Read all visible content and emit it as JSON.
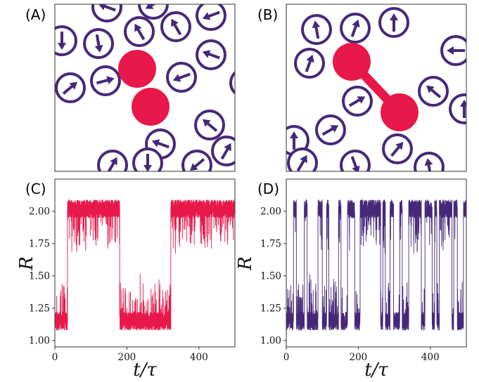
{
  "panels": [
    {
      "letter": "(A)"
    },
    {
      "letter": "(B)"
    },
    {
      "letter": "(C)"
    },
    {
      "letter": "(D)"
    }
  ],
  "colors": {
    "dimer": "#e8184a",
    "particle": "#46287a"
  },
  "chart_data": [
    {
      "type": "line",
      "panel": "(C)",
      "xlabel": "t/τ",
      "ylabel": "R",
      "xlim": [
        0,
        500
      ],
      "ylim": [
        0.95,
        2.25
      ],
      "xticks": [
        0,
        200,
        400
      ],
      "yticks": [
        "1.00",
        "1.25",
        "1.50",
        "1.75",
        "2.00"
      ],
      "color": "#e8184a",
      "segments": [
        {
          "t_start": 0,
          "t_end": 35,
          "mean_R": 1.15
        },
        {
          "t_start": 35,
          "t_end": 180,
          "mean_R": 2.02
        },
        {
          "t_start": 180,
          "t_end": 322,
          "mean_R": 1.15
        },
        {
          "t_start": 322,
          "t_end": 500,
          "mean_R": 2.02
        }
      ]
    },
    {
      "type": "line",
      "panel": "(D)",
      "xlabel": "t/τ",
      "ylabel": "R",
      "xlim": [
        0,
        500
      ],
      "ylim": [
        0.95,
        2.25
      ],
      "xticks": [
        0,
        200,
        400
      ],
      "yticks": [
        "1.00",
        "1.25",
        "1.50",
        "1.75",
        "2.00"
      ],
      "color": "#46287a",
      "segments": [
        {
          "t_start": 0,
          "t_end": 20,
          "mean_R": 1.15
        },
        {
          "t_start": 20,
          "t_end": 28,
          "mean_R": 2.02
        },
        {
          "t_start": 28,
          "t_end": 50,
          "mean_R": 1.15
        },
        {
          "t_start": 50,
          "t_end": 58,
          "mean_R": 2.02
        },
        {
          "t_start": 58,
          "t_end": 88,
          "mean_R": 1.15
        },
        {
          "t_start": 88,
          "t_end": 100,
          "mean_R": 2.02
        },
        {
          "t_start": 100,
          "t_end": 112,
          "mean_R": 1.15
        },
        {
          "t_start": 112,
          "t_end": 118,
          "mean_R": 2.02
        },
        {
          "t_start": 118,
          "t_end": 145,
          "mean_R": 1.15
        },
        {
          "t_start": 145,
          "t_end": 152,
          "mean_R": 2.02
        },
        {
          "t_start": 152,
          "t_end": 170,
          "mean_R": 1.15
        },
        {
          "t_start": 170,
          "t_end": 190,
          "mean_R": 2.02
        },
        {
          "t_start": 190,
          "t_end": 205,
          "mean_R": 1.15
        },
        {
          "t_start": 205,
          "t_end": 262,
          "mean_R": 2.02
        },
        {
          "t_start": 262,
          "t_end": 268,
          "mean_R": 1.15
        },
        {
          "t_start": 268,
          "t_end": 275,
          "mean_R": 2.02
        },
        {
          "t_start": 275,
          "t_end": 288,
          "mean_R": 1.15
        },
        {
          "t_start": 288,
          "t_end": 298,
          "mean_R": 2.02
        },
        {
          "t_start": 298,
          "t_end": 315,
          "mean_R": 1.15
        },
        {
          "t_start": 315,
          "t_end": 322,
          "mean_R": 2.02
        },
        {
          "t_start": 322,
          "t_end": 340,
          "mean_R": 1.15
        },
        {
          "t_start": 340,
          "t_end": 375,
          "mean_R": 2.02
        },
        {
          "t_start": 375,
          "t_end": 385,
          "mean_R": 1.15
        },
        {
          "t_start": 385,
          "t_end": 405,
          "mean_R": 2.02
        },
        {
          "t_start": 405,
          "t_end": 412,
          "mean_R": 1.15
        },
        {
          "t_start": 412,
          "t_end": 418,
          "mean_R": 2.02
        },
        {
          "t_start": 418,
          "t_end": 425,
          "mean_R": 1.15
        },
        {
          "t_start": 425,
          "t_end": 460,
          "mean_R": 2.02
        },
        {
          "t_start": 460,
          "t_end": 465,
          "mean_R": 1.15
        },
        {
          "t_start": 465,
          "t_end": 475,
          "mean_R": 2.02
        },
        {
          "t_start": 475,
          "t_end": 492,
          "mean_R": 1.15
        },
        {
          "t_start": 492,
          "t_end": 500,
          "mean_R": 2.02
        }
      ]
    }
  ]
}
